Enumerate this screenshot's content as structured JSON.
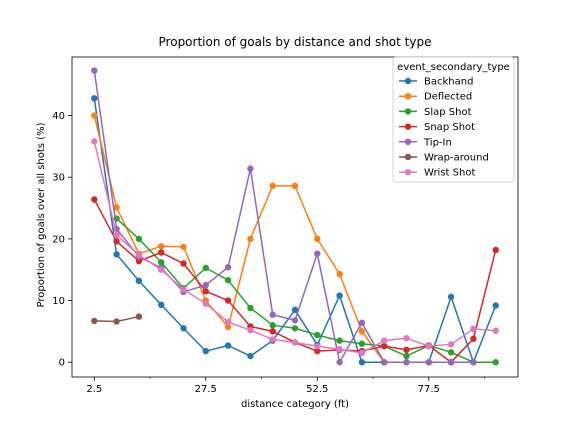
{
  "chart_data": {
    "type": "line",
    "title": "Proportion of goals by distance and shot type",
    "xlabel": "distance category (ft)",
    "ylabel": "Proportion of goals over all shots (%)",
    "xlim": [
      -2.5,
      97.5
    ],
    "ylim": [
      -2.4,
      49.5
    ],
    "xticks": [
      2.5,
      27.5,
      52.5,
      77.5
    ],
    "xticks_minor": [
      15,
      40,
      65,
      90
    ],
    "yticks": [
      0,
      10,
      20,
      30,
      40
    ],
    "grid": false,
    "legend_placement": "top-right",
    "legend_title": "event_secondary_type",
    "x": [
      2.5,
      7.5,
      12.5,
      17.5,
      22.5,
      27.5,
      32.5,
      37.5,
      42.5,
      47.5,
      52.5,
      57.5,
      62.5,
      67.5,
      72.5,
      77.5,
      82.5,
      87.5,
      92.5
    ],
    "series": [
      {
        "name": "Backhand",
        "color": "#1f77b4",
        "values": [
          42.8,
          17.5,
          13.2,
          9.3,
          5.5,
          1.8,
          2.7,
          1.0,
          3.5,
          8.5,
          2.8,
          10.8,
          0.0,
          0.0,
          0.0,
          0.0,
          10.6,
          0.0,
          9.2
        ]
      },
      {
        "name": "Deflected",
        "color": "#ff7f0e",
        "values": [
          40.0,
          25.1,
          17.6,
          18.8,
          18.7,
          10.0,
          5.7,
          20.0,
          28.6,
          28.6,
          20.0,
          14.3,
          5.0,
          0.0,
          0.0,
          0.0,
          0.0,
          0.0,
          null
        ]
      },
      {
        "name": "Slap Shot",
        "color": "#2ca02c",
        "values": [
          null,
          23.3,
          20.0,
          16.2,
          12.0,
          15.3,
          13.3,
          8.8,
          6.0,
          5.5,
          4.4,
          3.5,
          3.0,
          2.6,
          1.0,
          2.7,
          1.6,
          0.0,
          0.0
        ]
      },
      {
        "name": "Snap Shot",
        "color": "#d62728",
        "values": [
          26.4,
          19.6,
          16.4,
          17.8,
          16.0,
          11.5,
          10.0,
          5.8,
          5.0,
          3.2,
          1.8,
          2.0,
          1.8,
          2.6,
          2.0,
          2.7,
          0.0,
          3.8,
          18.2
        ]
      },
      {
        "name": "Tip-In",
        "color": "#9467bd",
        "values": [
          47.3,
          21.6,
          17.1,
          15.3,
          11.4,
          12.5,
          15.4,
          31.4,
          7.7,
          6.8,
          17.6,
          0.0,
          6.4,
          0.0,
          0.0,
          0.0,
          0.0,
          0.0,
          null
        ]
      },
      {
        "name": "Wrap-around",
        "color": "#8c564b",
        "values": [
          6.7,
          6.6,
          7.4,
          null,
          null,
          null,
          null,
          null,
          null,
          null,
          null,
          null,
          null,
          null,
          null,
          null,
          null,
          null,
          null
        ]
      },
      {
        "name": "Wrist Shot",
        "color": "#e377c2",
        "values": [
          35.8,
          20.6,
          17.4,
          15.0,
          11.8,
          9.5,
          6.5,
          5.2,
          3.7,
          3.2,
          2.6,
          2.1,
          1.5,
          3.5,
          3.9,
          2.6,
          2.9,
          5.4,
          5.1
        ]
      }
    ]
  }
}
